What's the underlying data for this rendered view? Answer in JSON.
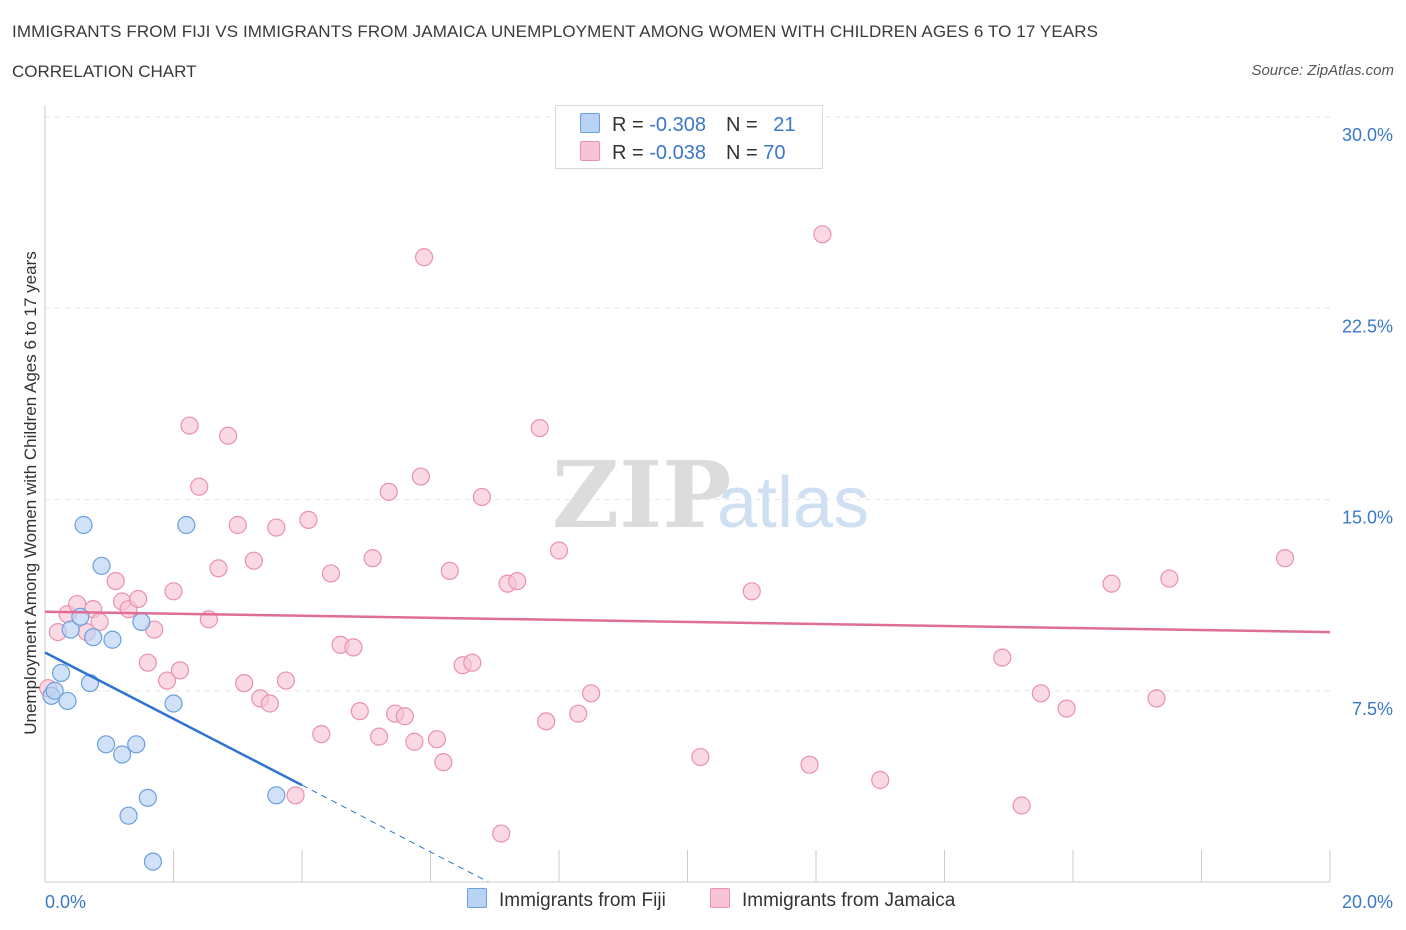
{
  "header": {
    "title": "IMMIGRANTS FROM FIJI VS IMMIGRANTS FROM JAMAICA UNEMPLOYMENT AMONG WOMEN WITH CHILDREN AGES 6 TO 17 YEARS",
    "subtitle": "CORRELATION CHART",
    "source": "Source: ZipAtlas.com"
  },
  "legend": {
    "fiji": {
      "r_label": "R = ",
      "r_value": "-0.308",
      "n_label": "N = ",
      "n_value": "21"
    },
    "jamaica": {
      "r_label": "R = ",
      "r_value": "-0.038",
      "n_label": "N = ",
      "n_value": "70"
    }
  },
  "watermark": {
    "zip": "ZIP",
    "atlas": "atlas"
  },
  "colors": {
    "fiji_fill": "#b9d3f5",
    "fiji_stroke": "#6b9fde",
    "fiji_line": "#2f74d0",
    "jamaica_fill": "#f7c4d4",
    "jamaica_stroke": "#e991b0",
    "jamaica_line": "#e06d96",
    "axis_label": "#3a78c9",
    "grid": "#e6e6e6"
  },
  "chart_data": {
    "type": "scatter",
    "title": "IMMIGRANTS FROM FIJI VS IMMIGRANTS FROM JAMAICA UNEMPLOYMENT AMONG WOMEN WITH CHILDREN AGES 6 TO 17 YEARS",
    "subtitle": "CORRELATION CHART",
    "xlabel": "",
    "ylabel": "Unemployment Among Women with Children Ages 6 to 17 years",
    "xlim": [
      0,
      20
    ],
    "ylim": [
      0,
      30
    ],
    "x_tick_labels": [
      "0.0%",
      "20.0%"
    ],
    "y_ticks": [
      7.5,
      15,
      22.5,
      30
    ],
    "y_tick_labels": [
      "7.5%",
      "15.0%",
      "22.5%",
      "30.0%"
    ],
    "grid": true,
    "legend_position": "top-center",
    "series": [
      {
        "name": "Immigrants from Fiji",
        "points": [
          [
            0.1,
            7.3
          ],
          [
            0.15,
            7.5
          ],
          [
            0.25,
            8.2
          ],
          [
            0.35,
            7.1
          ],
          [
            0.4,
            9.9
          ],
          [
            0.55,
            10.4
          ],
          [
            0.6,
            14.0
          ],
          [
            0.7,
            7.8
          ],
          [
            0.75,
            9.6
          ],
          [
            0.88,
            12.4
          ],
          [
            0.95,
            5.4
          ],
          [
            1.05,
            9.5
          ],
          [
            1.2,
            5.0
          ],
          [
            1.3,
            2.6
          ],
          [
            1.42,
            5.4
          ],
          [
            1.5,
            10.2
          ],
          [
            1.6,
            3.3
          ],
          [
            1.68,
            0.8
          ],
          [
            2.0,
            7.0
          ],
          [
            2.2,
            14.0
          ],
          [
            3.6,
            3.4
          ]
        ],
        "trend": {
          "x": [
            0,
            4.0
          ],
          "y": [
            9.0,
            3.8
          ]
        },
        "trend_extension": {
          "x": [
            4.0,
            6.9
          ],
          "y": [
            3.8,
            0.0
          ]
        }
      },
      {
        "name": "Immigrants from Jamaica",
        "points": [
          [
            0.05,
            7.6
          ],
          [
            0.2,
            9.8
          ],
          [
            0.35,
            10.5
          ],
          [
            0.5,
            10.9
          ],
          [
            0.65,
            9.8
          ],
          [
            0.75,
            10.7
          ],
          [
            0.85,
            10.2
          ],
          [
            1.1,
            11.8
          ],
          [
            1.2,
            11.0
          ],
          [
            1.3,
            10.7
          ],
          [
            1.45,
            11.1
          ],
          [
            1.6,
            8.6
          ],
          [
            1.7,
            9.9
          ],
          [
            1.9,
            7.9
          ],
          [
            2.0,
            11.4
          ],
          [
            2.1,
            8.3
          ],
          [
            2.25,
            17.9
          ],
          [
            2.4,
            15.5
          ],
          [
            2.55,
            10.3
          ],
          [
            2.7,
            12.3
          ],
          [
            2.85,
            17.5
          ],
          [
            3.0,
            14.0
          ],
          [
            3.1,
            7.8
          ],
          [
            3.25,
            12.6
          ],
          [
            3.35,
            7.2
          ],
          [
            3.5,
            7.0
          ],
          [
            3.6,
            13.9
          ],
          [
            3.75,
            7.9
          ],
          [
            3.9,
            3.4
          ],
          [
            4.1,
            14.2
          ],
          [
            4.3,
            5.8
          ],
          [
            4.45,
            12.1
          ],
          [
            4.6,
            9.3
          ],
          [
            4.8,
            9.2
          ],
          [
            4.9,
            6.7
          ],
          [
            5.1,
            12.7
          ],
          [
            5.2,
            5.7
          ],
          [
            5.35,
            15.3
          ],
          [
            5.45,
            6.6
          ],
          [
            5.6,
            6.5
          ],
          [
            5.75,
            5.5
          ],
          [
            5.85,
            15.9
          ],
          [
            5.9,
            24.5
          ],
          [
            6.1,
            5.6
          ],
          [
            6.2,
            4.7
          ],
          [
            6.3,
            12.2
          ],
          [
            6.5,
            8.5
          ],
          [
            6.65,
            8.6
          ],
          [
            6.8,
            15.1
          ],
          [
            7.1,
            1.9
          ],
          [
            7.2,
            11.7
          ],
          [
            7.35,
            11.8
          ],
          [
            7.7,
            17.8
          ],
          [
            7.8,
            6.3
          ],
          [
            8.0,
            13.0
          ],
          [
            8.3,
            6.6
          ],
          [
            8.5,
            7.4
          ],
          [
            10.2,
            4.9
          ],
          [
            11.0,
            11.4
          ],
          [
            11.9,
            4.6
          ],
          [
            12.1,
            25.4
          ],
          [
            13.0,
            4.0
          ],
          [
            14.9,
            8.8
          ],
          [
            15.2,
            3.0
          ],
          [
            15.5,
            7.4
          ],
          [
            15.9,
            6.8
          ],
          [
            16.6,
            11.7
          ],
          [
            17.3,
            7.2
          ],
          [
            17.5,
            11.9
          ],
          [
            19.3,
            12.7
          ]
        ],
        "trend": {
          "x": [
            0,
            20
          ],
          "y": [
            10.6,
            9.8
          ]
        }
      }
    ]
  }
}
